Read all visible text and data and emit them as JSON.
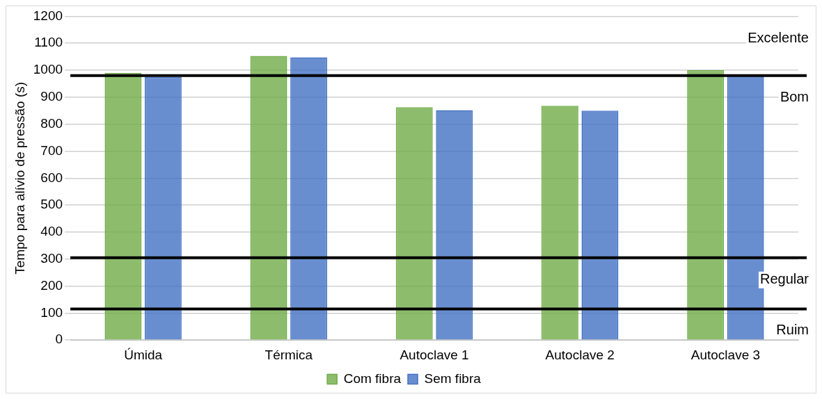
{
  "chart_data": {
    "type": "bar",
    "ylabel": "Tempo para alívio de pressão (s)",
    "categories": [
      "Úmida",
      "Térmica",
      "Autoclave 1",
      "Autoclave 2",
      "Autoclave 3"
    ],
    "series": [
      {
        "name": "Com fibra",
        "color": "#70ad47",
        "values": [
          990,
          1053,
          863,
          868,
          1000
        ]
      },
      {
        "name": "Sem fibra",
        "color": "#4472c4",
        "values": [
          975,
          1048,
          852,
          850,
          980
        ]
      }
    ],
    "ylim": [
      0,
      1200
    ],
    "yticks": [
      0,
      100,
      200,
      300,
      400,
      500,
      600,
      700,
      800,
      900,
      1000,
      1100,
      1200
    ],
    "grid": "y",
    "legend": "bottom",
    "ref_lines": [
      {
        "axis": "y",
        "value": 980,
        "color": "#000000"
      },
      {
        "axis": "y",
        "value": 305,
        "color": "#000000"
      },
      {
        "axis": "y",
        "value": 115,
        "color": "#000000"
      }
    ],
    "annotations": [
      "Excelente",
      "Bom",
      "Regular",
      "Ruim"
    ]
  }
}
